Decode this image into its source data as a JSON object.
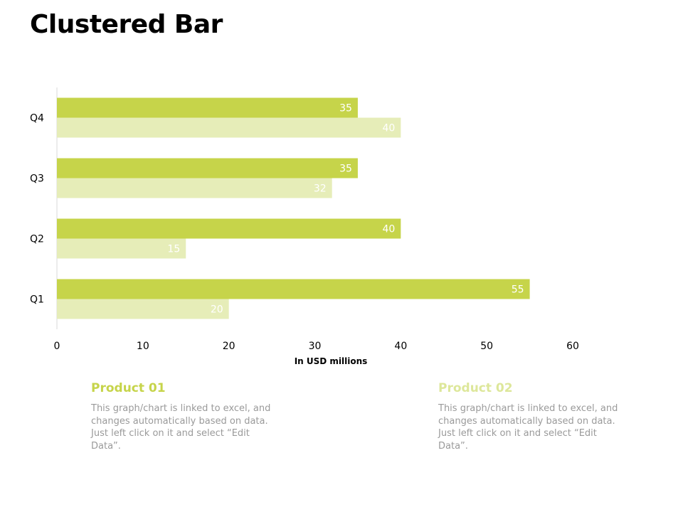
{
  "page": {
    "title": "Clustered Bar"
  },
  "colors": {
    "product01": "#c6d44a",
    "product02": "#e6edb8",
    "axis_text": "#000000",
    "desc_text": "#9a9a9a"
  },
  "chart_data": {
    "type": "bar",
    "orientation": "horizontal",
    "title": "",
    "xlabel": "In USD millions",
    "ylabel": "",
    "categories": [
      "Q1",
      "Q2",
      "Q3",
      "Q4"
    ],
    "series": [
      {
        "name": "Product 01",
        "values": [
          55,
          40,
          35,
          35
        ]
      },
      {
        "name": "Product 02",
        "values": [
          20,
          15,
          32,
          40
        ]
      }
    ],
    "xlim": [
      0,
      60
    ],
    "x_ticks": [
      "0",
      "10",
      "20",
      "30",
      "40",
      "50",
      "60"
    ],
    "grid": false,
    "data_labels": true
  },
  "legend_cards": [
    {
      "title": "Product 01",
      "description": "This graph/chart is linked to excel, and changes automatically based on data. Just left click on it and select “Edit Data”."
    },
    {
      "title": "Product 02",
      "description": "This graph/chart is linked to excel, and changes automatically based on data. Just left click on it and select “Edit Data”."
    }
  ]
}
